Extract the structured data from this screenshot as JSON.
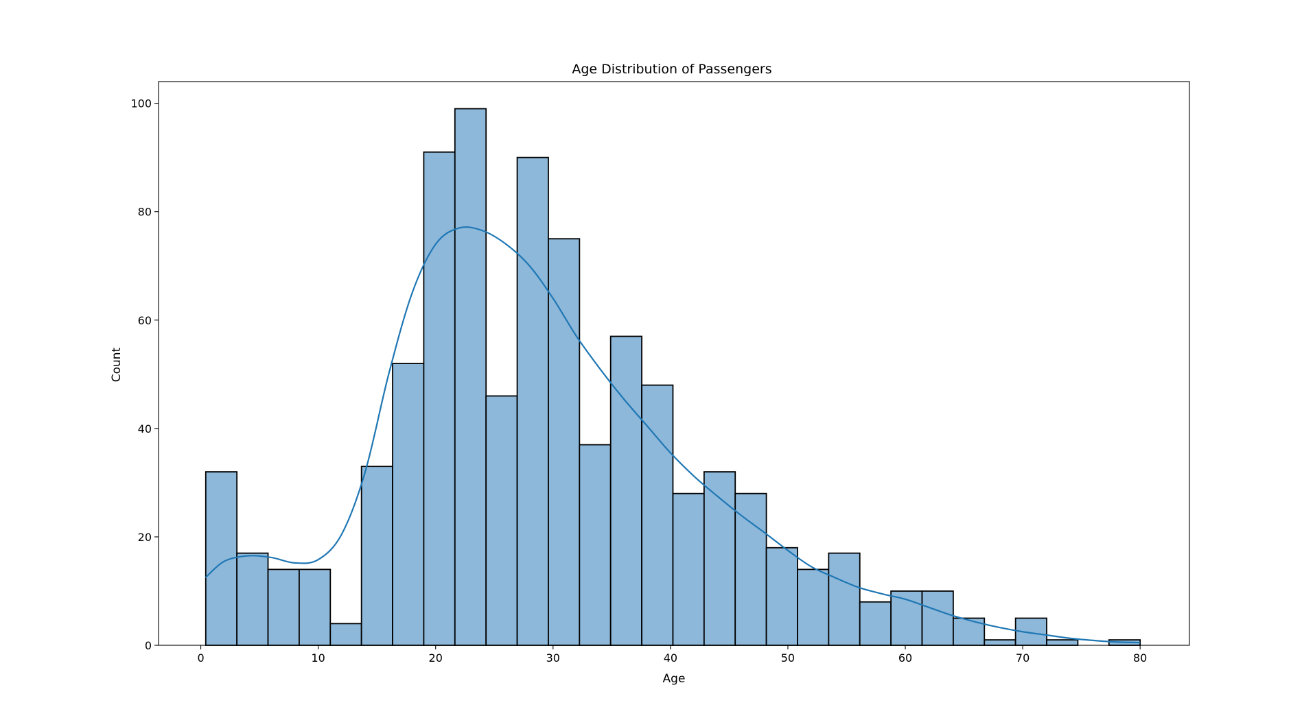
{
  "chart_data": {
    "type": "bar",
    "title": "Age Distribution of Passengers",
    "xlabel": "Age",
    "ylabel": "Count",
    "xlim": [
      -3.6,
      84.2
    ],
    "ylim": [
      0,
      104
    ],
    "xticks": [
      0,
      10,
      20,
      30,
      40,
      50,
      60,
      70,
      80
    ],
    "yticks": [
      0,
      20,
      40,
      60,
      80,
      100
    ],
    "grid": false,
    "bin_start": 0.42,
    "bin_width": 2.6527,
    "values": [
      32,
      17,
      14,
      14,
      4,
      33,
      52,
      91,
      99,
      46,
      90,
      75,
      37,
      57,
      48,
      28,
      32,
      28,
      18,
      14,
      17,
      8,
      10,
      10,
      5,
      1,
      5,
      1,
      0,
      1
    ],
    "bar_color": "#8db8da",
    "bar_edge_color": "#000000",
    "kde": {
      "name": "",
      "color": "#1f77b4",
      "x": [
        0.4,
        2,
        4,
        6,
        8,
        10,
        12,
        14,
        16,
        18,
        20,
        22,
        24,
        26,
        28,
        30,
        32,
        34,
        36,
        38,
        40,
        42,
        44,
        46,
        48,
        50,
        52,
        54,
        56,
        58,
        60,
        62,
        64,
        66,
        68,
        70,
        72,
        74,
        76,
        78,
        80
      ],
      "y": [
        12.5,
        15.5,
        16.5,
        16.2,
        15.2,
        15.8,
        20.5,
        32,
        50,
        65,
        74,
        77,
        76.5,
        74,
        70,
        64,
        57,
        51,
        45.5,
        40.5,
        35.5,
        31.2,
        27.5,
        24,
        20.8,
        17.5,
        14.5,
        12.5,
        10.7,
        9.5,
        8.5,
        7,
        5.5,
        4.3,
        3.3,
        2.5,
        1.9,
        1.3,
        0.9,
        0.6,
        0.5
      ]
    }
  }
}
